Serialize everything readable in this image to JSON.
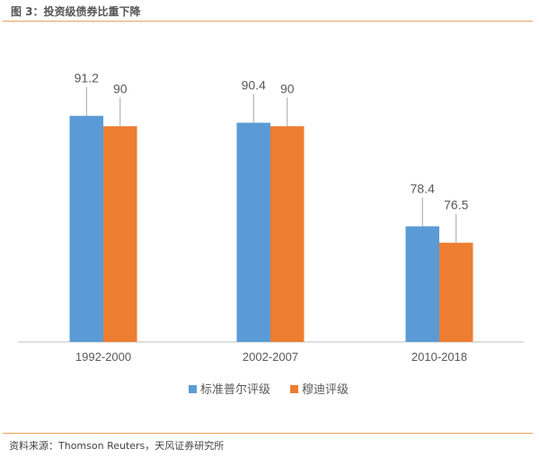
{
  "header": {
    "title": "图 3：投资级债券比重下降"
  },
  "footer": {
    "source": "资料来源：Thomson Reuters，天风证券研究所"
  },
  "chart_data": {
    "type": "bar",
    "categories": [
      "1992-2000",
      "2002-2007",
      "2010-2018"
    ],
    "series": [
      {
        "name": "标准普尔评级",
        "values": [
          91.2,
          90.4,
          78.4
        ],
        "color": "#5b9bd5"
      },
      {
        "name": "穆迪评级",
        "values": [
          90,
          90,
          76.5
        ],
        "color": "#ed7d31"
      }
    ],
    "ylim": [
      65,
      100
    ],
    "grid": false,
    "legend": "bottom",
    "data_labels": true
  }
}
